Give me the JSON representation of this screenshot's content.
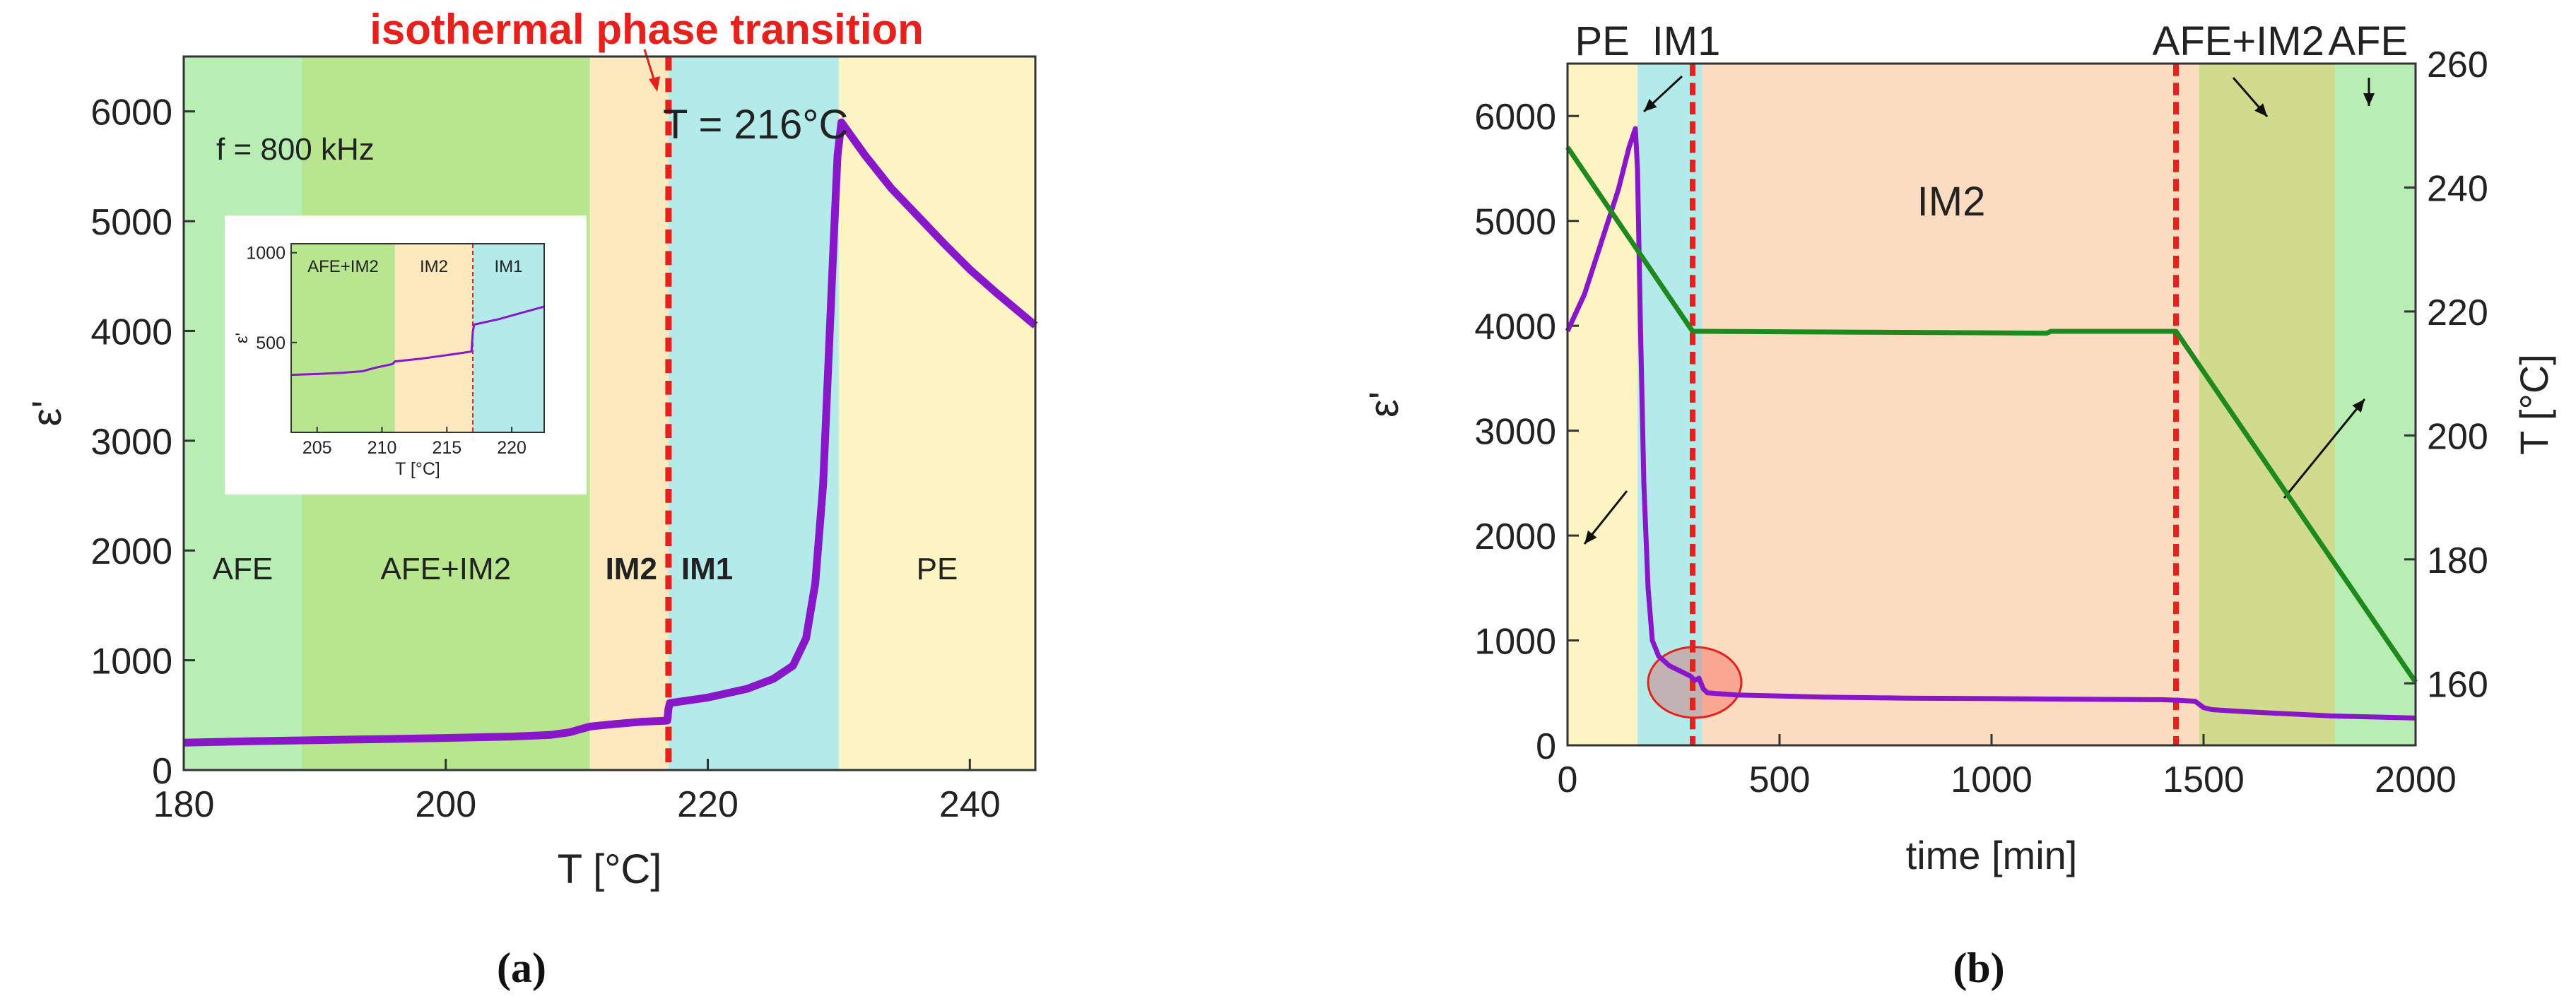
{
  "chart_data": [
    {
      "type": "line",
      "panel_label": "(a)",
      "top_annotation": "isothermal phase transition",
      "temperature_label": "T = 216°C",
      "freq_label": "f = 800 kHz",
      "xlabel": "T [°C]",
      "ylabel": "ε'",
      "xlim": [
        180,
        245
      ],
      "ylim": [
        0,
        6500
      ],
      "xticks": [
        180,
        200,
        220,
        240
      ],
      "yticks": [
        0,
        1000,
        2000,
        3000,
        4000,
        5000,
        6000
      ],
      "dashed_line_x": 217,
      "regions": [
        {
          "name": "AFE",
          "x0": 180,
          "x1": 189,
          "color": "#b7eeb3",
          "label_color": "#222222"
        },
        {
          "name": "AFE+IM2",
          "x0": 189,
          "x1": 211,
          "color": "#b7e68f",
          "label_color": "#222222"
        },
        {
          "name": "IM2",
          "x0": 211,
          "x1": 217,
          "color": "#fde9bd",
          "label_color": "#e8201c"
        },
        {
          "name": "IM1",
          "x0": 217,
          "x1": 230,
          "color": "#b3eaea",
          "label_color": "#e8201c"
        },
        {
          "name": "PE",
          "x0": 230,
          "x1": 245,
          "color": "#fdf3c3",
          "label_color": "#222222"
        }
      ],
      "series": [
        {
          "color": "#8a16c9",
          "x": [
            180,
            185,
            190,
            195,
            200,
            205,
            208,
            209.5,
            210.5,
            211,
            211.3,
            213,
            215,
            216.9,
            217,
            217.1,
            220,
            223,
            225,
            226.5,
            227.5,
            228.2,
            228.8,
            229.2,
            229.6,
            229.9,
            230.2,
            232,
            234,
            236,
            238,
            240,
            242,
            245
          ],
          "y": [
            250,
            262,
            272,
            282,
            292,
            305,
            320,
            345,
            380,
            395,
            400,
            420,
            440,
            450,
            560,
            610,
            660,
            740,
            830,
            950,
            1200,
            1700,
            2600,
            3700,
            4800,
            5600,
            5900,
            5600,
            5300,
            5050,
            4800,
            4560,
            4350,
            4050
          ]
        }
      ],
      "inset": {
        "xlabel": "T [°C]",
        "ylabel": "ε'",
        "xlim": [
          203,
          222.5
        ],
        "ylim": [
          0,
          1050
        ],
        "xticks": [
          205,
          210,
          215,
          220
        ],
        "yticks": [
          500,
          1000
        ],
        "dashed_line_x": 217,
        "regions": [
          {
            "name": "AFE+IM2",
            "x0": 203,
            "x1": 211,
            "color": "#b7e68f"
          },
          {
            "name": "IM2",
            "x0": 211,
            "x1": 217,
            "color": "#fde9bd"
          },
          {
            "name": "IM1",
            "x0": 217,
            "x1": 222.5,
            "color": "#b3eaea"
          }
        ],
        "x": [
          203,
          205,
          207,
          208.5,
          209.5,
          210.8,
          211,
          213,
          215,
          216.9,
          217,
          217.1,
          219,
          221,
          222.5
        ],
        "y": [
          320,
          325,
          332,
          340,
          360,
          380,
          395,
          410,
          430,
          450,
          560,
          600,
          630,
          670,
          700
        ]
      }
    },
    {
      "type": "line",
      "panel_label": "(b)",
      "xlabel": "time [min]",
      "ylabel": "ε'",
      "y2label": "T [°C]",
      "xlim": [
        0,
        2000
      ],
      "ylim": [
        0,
        6500
      ],
      "y2lim": [
        150,
        260
      ],
      "xticks": [
        0,
        500,
        1000,
        1500,
        2000
      ],
      "yticks": [
        0,
        1000,
        2000,
        3000,
        4000,
        5000,
        6000
      ],
      "y2ticks": [
        160,
        180,
        200,
        220,
        240,
        260
      ],
      "dashed_lines_x": [
        295,
        1435
      ],
      "regions": [
        {
          "name": "PE",
          "x0": 0,
          "x1": 165,
          "color": "#fdf3c3"
        },
        {
          "name": "IM1",
          "x0": 165,
          "x1": 318,
          "color": "#b3eaea"
        },
        {
          "name": "IM2",
          "x0": 318,
          "x1": 1490,
          "color": "#fcdcc0"
        },
        {
          "name": "AFE+IM2",
          "x0": 1490,
          "x1": 1810,
          "color": "#d0db8e"
        },
        {
          "name": "AFE",
          "x0": 1810,
          "x1": 2000,
          "color": "#b7eeb3"
        }
      ],
      "series": [
        {
          "name": "ε'",
          "axis": "left",
          "color": "#8a16c9",
          "x": [
            0,
            40,
            80,
            120,
            145,
            160,
            165,
            172,
            180,
            190,
            200,
            215,
            240,
            270,
            290,
            300,
            310,
            320,
            330,
            400,
            600,
            800,
            1000,
            1200,
            1400,
            1440,
            1480,
            1500,
            1520,
            1600,
            1800,
            2000
          ],
          "y": [
            3950,
            4300,
            4800,
            5300,
            5700,
            5880,
            5500,
            4000,
            2500,
            1500,
            1000,
            850,
            760,
            700,
            660,
            620,
            640,
            540,
            500,
            480,
            460,
            450,
            445,
            440,
            435,
            430,
            420,
            360,
            340,
            320,
            280,
            260
          ]
        },
        {
          "name": "T",
          "axis": "right",
          "color": "#1e8a1e",
          "x": [
            0,
            295,
            320,
            1130,
            1140,
            1435,
            2000
          ],
          "y": [
            246.5,
            216.8,
            216.8,
            216.5,
            216.8,
            216.8,
            160.2
          ]
        }
      ],
      "highlight_circle_x": 300,
      "highlight_circle_y": 600
    }
  ]
}
